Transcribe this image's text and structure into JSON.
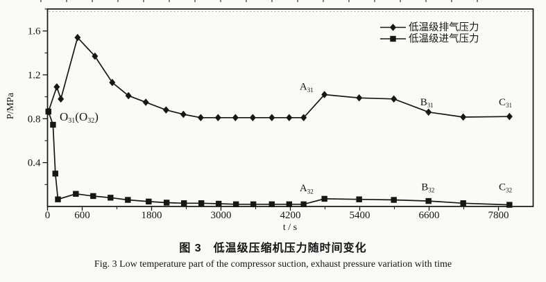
{
  "figure_captions": {
    "caption_cn": "图 3　低温级压缩机压力随时间变化",
    "caption_en": "Fig. 3   Low temperature part of the compressor suction, exhaust pressure variation with time"
  },
  "chart_data": {
    "type": "line",
    "title": "",
    "xlabel": "t / s",
    "ylabel": "P/MPa",
    "xlim": [
      0,
      8400
    ],
    "ylim": [
      0,
      1.8
    ],
    "grid": false,
    "legend_position": "top-right-inside",
    "line_color": "#161616",
    "x_ticks_major": {
      "values": [
        0,
        600,
        1800,
        3000,
        4200,
        5400,
        6600,
        7800
      ],
      "labels": [
        "0",
        "600",
        "1800",
        "3000",
        "4200",
        "5400",
        "6600",
        "7800"
      ]
    },
    "x_ticks_minor": [
      1200,
      2400,
      3600,
      4800,
      6000,
      7200
    ],
    "y_ticks_major": {
      "values": [
        0.4,
        0.8,
        1.2,
        1.6
      ],
      "labels": [
        "0.4",
        "0.8",
        "1.2",
        "1.6"
      ]
    },
    "y_ticks_minor": [
      0.2,
      0.6,
      1.0,
      1.4,
      1.8
    ],
    "series": [
      {
        "name": "低温级排气压力",
        "marker": "diamond",
        "points": [
          [
            15,
            0.865
          ],
          [
            160,
            1.09
          ],
          [
            230,
            0.98
          ],
          [
            520,
            1.54
          ],
          [
            820,
            1.37
          ],
          [
            1120,
            1.13
          ],
          [
            1400,
            1.01
          ],
          [
            1700,
            0.95
          ],
          [
            2050,
            0.88
          ],
          [
            2350,
            0.84
          ],
          [
            2650,
            0.81
          ],
          [
            2950,
            0.81
          ],
          [
            3250,
            0.81
          ],
          [
            3550,
            0.81
          ],
          [
            3880,
            0.81
          ],
          [
            4180,
            0.81
          ],
          [
            4430,
            0.81
          ],
          [
            4790,
            1.02
          ],
          [
            5390,
            0.99
          ],
          [
            5990,
            0.98
          ],
          [
            6590,
            0.86
          ],
          [
            7190,
            0.815
          ],
          [
            7990,
            0.82
          ]
        ]
      },
      {
        "name": "低温级进气压力",
        "marker": "square",
        "points": [
          [
            15,
            0.865
          ],
          [
            95,
            0.745
          ],
          [
            135,
            0.3
          ],
          [
            180,
            0.065
          ],
          [
            490,
            0.115
          ],
          [
            790,
            0.095
          ],
          [
            1090,
            0.08
          ],
          [
            1390,
            0.06
          ],
          [
            1750,
            0.045
          ],
          [
            2060,
            0.035
          ],
          [
            2360,
            0.03
          ],
          [
            2660,
            0.03
          ],
          [
            2960,
            0.025
          ],
          [
            3260,
            0.02
          ],
          [
            3560,
            0.02
          ],
          [
            3880,
            0.02
          ],
          [
            4180,
            0.02
          ],
          [
            4430,
            0.02
          ],
          [
            4790,
            0.07
          ],
          [
            5390,
            0.065
          ],
          [
            5990,
            0.06
          ],
          [
            6590,
            0.05
          ],
          [
            7190,
            0.03
          ],
          [
            7990,
            0.015
          ]
        ]
      }
    ],
    "annotations": [
      {
        "id": "O31-O32",
        "parts": [
          [
            "O",
            0
          ],
          [
            "31",
            1
          ],
          [
            "(O",
            0
          ],
          [
            "32",
            1
          ],
          [
            ")",
            0
          ]
        ],
        "t": 210,
        "p": 0.815,
        "anchor": "start",
        "font_size": 17
      },
      {
        "id": "A31",
        "parts": [
          [
            "A",
            0
          ],
          [
            "31",
            1
          ]
        ],
        "t": 4480,
        "p": 1.095,
        "anchor": "middle",
        "font_size": 15
      },
      {
        "id": "B31",
        "parts": [
          [
            "B",
            0
          ],
          [
            "31",
            1
          ]
        ],
        "t": 6560,
        "p": 0.955,
        "anchor": "middle",
        "font_size": 15
      },
      {
        "id": "C31",
        "parts": [
          [
            "C",
            0
          ],
          [
            "31",
            1
          ]
        ],
        "t": 7920,
        "p": 0.955,
        "anchor": "middle",
        "font_size": 15
      },
      {
        "id": "A32",
        "parts": [
          [
            "A",
            0
          ],
          [
            "32",
            1
          ]
        ],
        "t": 4480,
        "p": 0.17,
        "anchor": "middle",
        "font_size": 15
      },
      {
        "id": "B32",
        "parts": [
          [
            "B",
            0
          ],
          [
            "32",
            1
          ]
        ],
        "t": 6580,
        "p": 0.18,
        "anchor": "middle",
        "font_size": 15
      },
      {
        "id": "C32",
        "parts": [
          [
            "C",
            0
          ],
          [
            "32",
            1
          ]
        ],
        "t": 7920,
        "p": 0.18,
        "anchor": "middle",
        "font_size": 15
      }
    ]
  }
}
